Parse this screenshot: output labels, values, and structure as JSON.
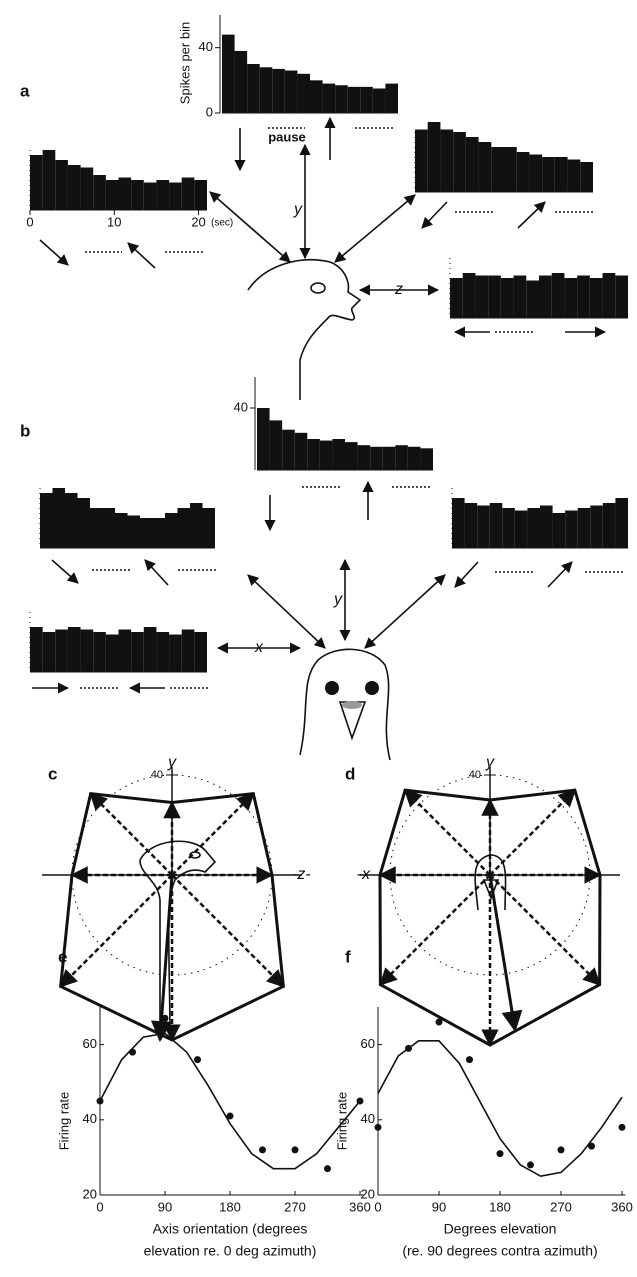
{
  "panel_labels": [
    "a",
    "b",
    "c",
    "d",
    "e",
    "f"
  ],
  "annotations": {
    "pause": "pause",
    "y": "y",
    "z": "z",
    "x": "x"
  },
  "chart_data": [
    {
      "type": "histogram",
      "bins": [
        0,
        1.5,
        3,
        4.5,
        6,
        7.5,
        9,
        10.5,
        12,
        13.5,
        15,
        16.5,
        18,
        19.5,
        21
      ],
      "values": [
        48,
        38,
        30,
        28,
        27,
        26,
        24,
        20,
        18,
        17,
        16,
        16,
        15,
        18
      ],
      "ylim": [
        0,
        60
      ],
      "yticks": [
        0,
        40
      ],
      "ylabel": "Spikes per bin"
    },
    {
      "type": "histogram",
      "bins": [
        0,
        1.5,
        3,
        4.5,
        6,
        7.5,
        9,
        10.5,
        12,
        13.5,
        15,
        16.5,
        18,
        19.5,
        21
      ],
      "values": [
        22,
        24,
        20,
        18,
        17,
        14,
        12,
        13,
        12,
        11,
        12,
        11,
        13,
        12
      ],
      "ylim": [
        0,
        60
      ],
      "xticks": [
        0,
        10,
        20
      ],
      "xlabel": "(sec)"
    },
    {
      "type": "histogram",
      "bins": [
        0,
        1.5,
        3,
        4.5,
        6,
        7.5,
        9,
        10.5,
        12,
        13.5,
        15,
        16.5,
        18,
        19.5,
        21
      ],
      "values": [
        25,
        28,
        25,
        24,
        22,
        20,
        18,
        18,
        16,
        15,
        14,
        14,
        13,
        12
      ],
      "ylim": [
        0,
        60
      ]
    },
    {
      "type": "histogram",
      "bins": [
        0,
        1.5,
        3,
        4.5,
        6,
        7.5,
        9,
        10.5,
        12,
        13.5,
        15,
        16.5,
        18,
        19.5,
        21
      ],
      "values": [
        16,
        18,
        17,
        17,
        16,
        17,
        15,
        17,
        18,
        16,
        17,
        16,
        18,
        17
      ],
      "ylim": [
        0,
        60
      ]
    },
    {
      "type": "histogram",
      "bins": [
        0,
        1.5,
        3,
        4.5,
        6,
        7.5,
        9,
        10.5,
        12,
        13.5,
        15,
        16.5,
        18,
        19.5,
        21
      ],
      "values": [
        40,
        32,
        26,
        24,
        20,
        19,
        20,
        18,
        16,
        15,
        15,
        16,
        15,
        14
      ],
      "ylim": [
        0,
        60
      ],
      "yticks": [
        40
      ]
    },
    {
      "type": "histogram",
      "bins": [
        0,
        1.5,
        3,
        4.5,
        6,
        7.5,
        9,
        10.5,
        12,
        13.5,
        15,
        16.5,
        18,
        19.5,
        21
      ],
      "values": [
        22,
        24,
        22,
        20,
        16,
        16,
        14,
        13,
        12,
        12,
        14,
        16,
        18,
        16
      ],
      "ylim": [
        0,
        60
      ]
    },
    {
      "type": "histogram",
      "bins": [
        0,
        1.5,
        3,
        4.5,
        6,
        7.5,
        9,
        10.5,
        12,
        13.5,
        15,
        16.5,
        18,
        19.5,
        21
      ],
      "values": [
        20,
        18,
        17,
        18,
        16,
        15,
        16,
        17,
        14,
        15,
        16,
        17,
        18,
        20
      ],
      "ylim": [
        0,
        60
      ]
    },
    {
      "type": "histogram",
      "bins": [
        0,
        1.5,
        3,
        4.5,
        6,
        7.5,
        9,
        10.5,
        12,
        13.5,
        15,
        16.5,
        18,
        19.5,
        21
      ],
      "values": [
        18,
        16,
        17,
        18,
        17,
        16,
        15,
        17,
        16,
        18,
        16,
        15,
        17,
        16
      ],
      "ylim": [
        0,
        60
      ]
    },
    {
      "type": "polar",
      "theta": [
        0,
        45,
        90,
        135,
        180,
        225,
        270,
        315
      ],
      "values": [
        40,
        46,
        29,
        46,
        40,
        63,
        66,
        63
      ],
      "rlim": [
        0,
        80
      ],
      "rticks": [
        40
      ],
      "top_label": "y",
      "side_label": "-z-"
    },
    {
      "type": "polar",
      "theta": [
        0,
        45,
        90,
        135,
        180,
        225,
        270,
        315
      ],
      "values": [
        44,
        48,
        30,
        48,
        44,
        62,
        68,
        62
      ],
      "rlim": [
        0,
        80
      ],
      "rticks": [
        40
      ],
      "top_label": "y",
      "side_label": "-x"
    },
    {
      "type": "scatter",
      "x": [
        0,
        45,
        90,
        135,
        180,
        225,
        270,
        315,
        360
      ],
      "values": [
        45,
        58,
        67,
        56,
        41,
        32,
        32,
        27,
        45
      ],
      "fit": {
        "x": [
          0,
          30,
          60,
          90,
          120,
          150,
          180,
          210,
          240,
          270,
          300,
          330,
          360
        ],
        "values": [
          45,
          56,
          62,
          63,
          58,
          49,
          39,
          31,
          27,
          27,
          31,
          38,
          45
        ]
      },
      "xlim": [
        0,
        365
      ],
      "ylim": [
        20,
        70
      ],
      "xticks": [
        0,
        90,
        180,
        270,
        360
      ],
      "yticks": [
        20,
        40,
        60
      ],
      "ylabel": "Firing rate",
      "xlabel": [
        "Axis orientation (degrees",
        "elevation re. 0 deg azimuth)"
      ]
    },
    {
      "type": "scatter",
      "x": [
        0,
        45,
        90,
        135,
        180,
        225,
        270,
        315,
        360
      ],
      "values": [
        38,
        59,
        66,
        56,
        31,
        28,
        32,
        33,
        38
      ],
      "fit": {
        "x": [
          0,
          30,
          60,
          90,
          120,
          150,
          180,
          210,
          240,
          270,
          300,
          330,
          360
        ],
        "values": [
          47,
          57,
          61,
          61,
          55,
          45,
          35,
          28,
          25,
          26,
          31,
          38,
          46
        ]
      },
      "xlim": [
        0,
        365
      ],
      "ylim": [
        20,
        70
      ],
      "xticks": [
        0,
        90,
        180,
        270,
        360
      ],
      "yticks": [
        20,
        40,
        60
      ],
      "ylabel": "Firing rate",
      "xlabel": [
        "Degrees elevation",
        "(re. 90 degrees contra azimuth)"
      ]
    }
  ]
}
